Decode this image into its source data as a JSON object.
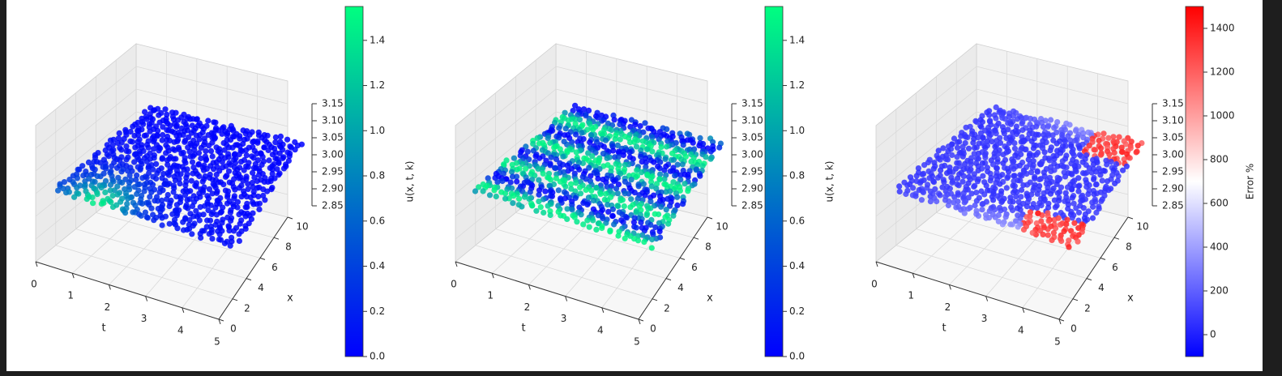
{
  "chart_data": [
    {
      "type": "scatter3d",
      "panel": "prediction",
      "xlabel": "t",
      "ylabel": "x",
      "zlabel": "",
      "xlim": [
        0,
        5
      ],
      "ylim": [
        0,
        10
      ],
      "zlim": [
        2.85,
        3.15
      ],
      "xticks": [
        "0",
        "1",
        "2",
        "3",
        "4",
        "5"
      ],
      "yticks": [
        "0",
        "2",
        "4",
        "6",
        "8",
        "10"
      ],
      "zticks": [
        "2.85",
        "2.90",
        "2.95",
        "3.00",
        "3.05",
        "3.10",
        "3.15"
      ],
      "colorbar": {
        "label": "u(x, t, k)",
        "min": 0.0,
        "max": 1.55,
        "ticks": [
          "0.0",
          "0.2",
          "0.4",
          "0.6",
          "0.8",
          "1.0",
          "1.2",
          "1.4"
        ],
        "colors": [
          "#0000ff",
          "#00ff80"
        ]
      },
      "value_profile": "smooth hump along t near x≈0, values 0.0–1.3"
    },
    {
      "type": "scatter3d",
      "panel": "ground-truth",
      "xlabel": "t",
      "ylabel": "x",
      "zlabel": "",
      "xlim": [
        0,
        5
      ],
      "ylim": [
        0,
        10
      ],
      "zlim": [
        2.85,
        3.15
      ],
      "xticks": [
        "0",
        "1",
        "2",
        "3",
        "4",
        "5"
      ],
      "yticks": [
        "0",
        "2",
        "4",
        "6",
        "8",
        "10"
      ],
      "zticks": [
        "2.85",
        "2.90",
        "2.95",
        "3.00",
        "3.05",
        "3.10",
        "3.15"
      ],
      "colorbar": {
        "label": "u(x, t, k)",
        "min": 0.0,
        "max": 1.55,
        "ticks": [
          "0.0",
          "0.2",
          "0.4",
          "0.6",
          "0.8",
          "1.0",
          "1.2",
          "1.4"
        ],
        "colors": [
          "#0000ff",
          "#00ff80"
        ]
      },
      "value_profile": "alternating stripes in x, values 0.0–1.5"
    },
    {
      "type": "scatter3d",
      "panel": "error",
      "xlabel": "t",
      "ylabel": "x",
      "zlabel": "",
      "xlim": [
        0,
        5
      ],
      "ylim": [
        0,
        10
      ],
      "zlim": [
        2.85,
        3.15
      ],
      "xticks": [
        "0",
        "1",
        "2",
        "3",
        "4",
        "5"
      ],
      "yticks": [
        "0",
        "2",
        "4",
        "6",
        "8",
        "10"
      ],
      "zticks": [
        "2.85",
        "2.90",
        "2.95",
        "3.00",
        "3.05",
        "3.10",
        "3.15"
      ],
      "colorbar": {
        "label": "Error %",
        "min": -100,
        "max": 1500,
        "ticks": [
          "0",
          "200",
          "400",
          "600",
          "800",
          "1000",
          "1200",
          "1400"
        ],
        "colors": [
          "#0000ff",
          "#ffffff",
          "#ff0000"
        ]
      },
      "value_profile": "mostly near 0 %, edges at high t rise to ~1400 %"
    }
  ]
}
